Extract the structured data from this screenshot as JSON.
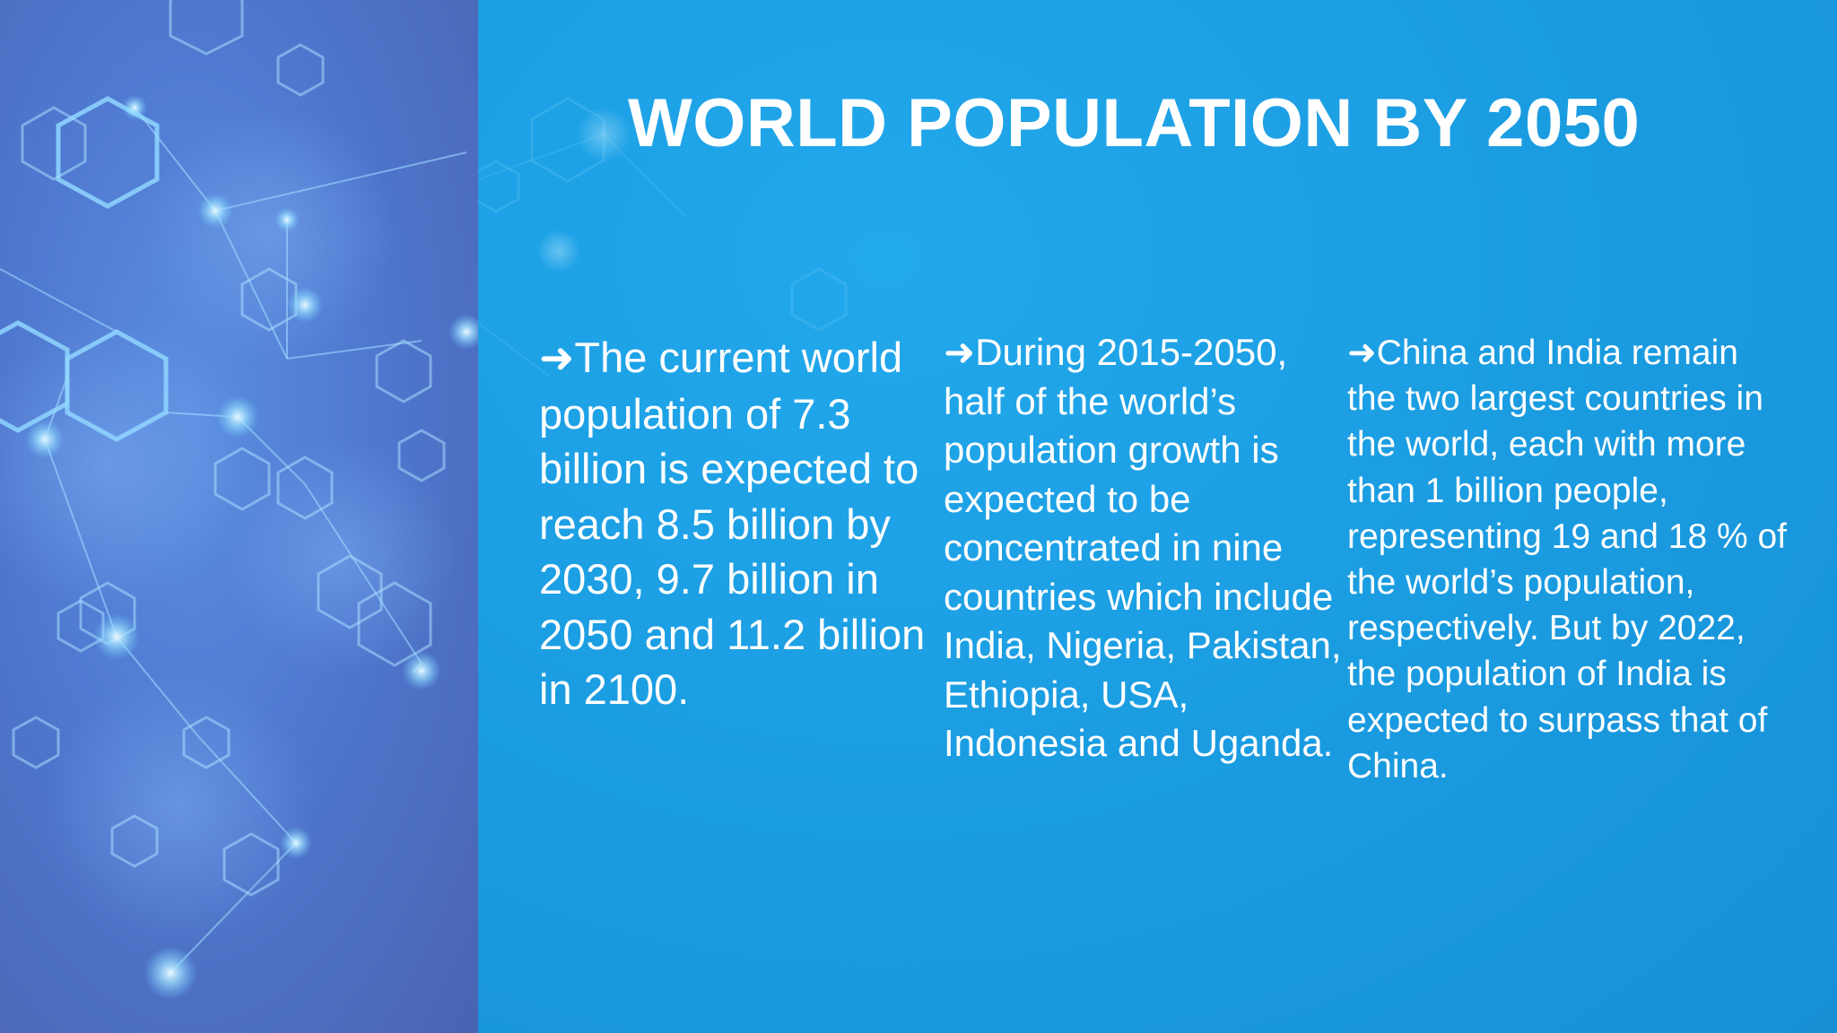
{
  "slide": {
    "title": "WORLD POPULATION BY 2050",
    "bullet_glyph": "➜",
    "columns": [
      {
        "text": "The current world population of 7.3 billion is expected to reach 8.5 billion by 2030, 9.7 billion in 2050 and 11.2 billion in 2100."
      },
      {
        "text": "During 2015-2050, half of the world’s population growth is expected to be concentrated in nine countries which include India, Nigeria, Pakistan, Ethiopia, USA, Indonesia and Uganda."
      },
      {
        "text": "China and India remain the two largest countries in the world, each with more than 1 billion people, representing 19 and 18 % of the world’s population, respectively. But by 2022, the population of India is expected to surpass that of China."
      }
    ]
  },
  "icons": {
    "side_decoration": "hexagon-network-icon",
    "bullet": "arrow-right-icon"
  },
  "colors": {
    "background": "#1a9ce0",
    "side_panel": "#4f78cf",
    "text": "#ffffff"
  }
}
